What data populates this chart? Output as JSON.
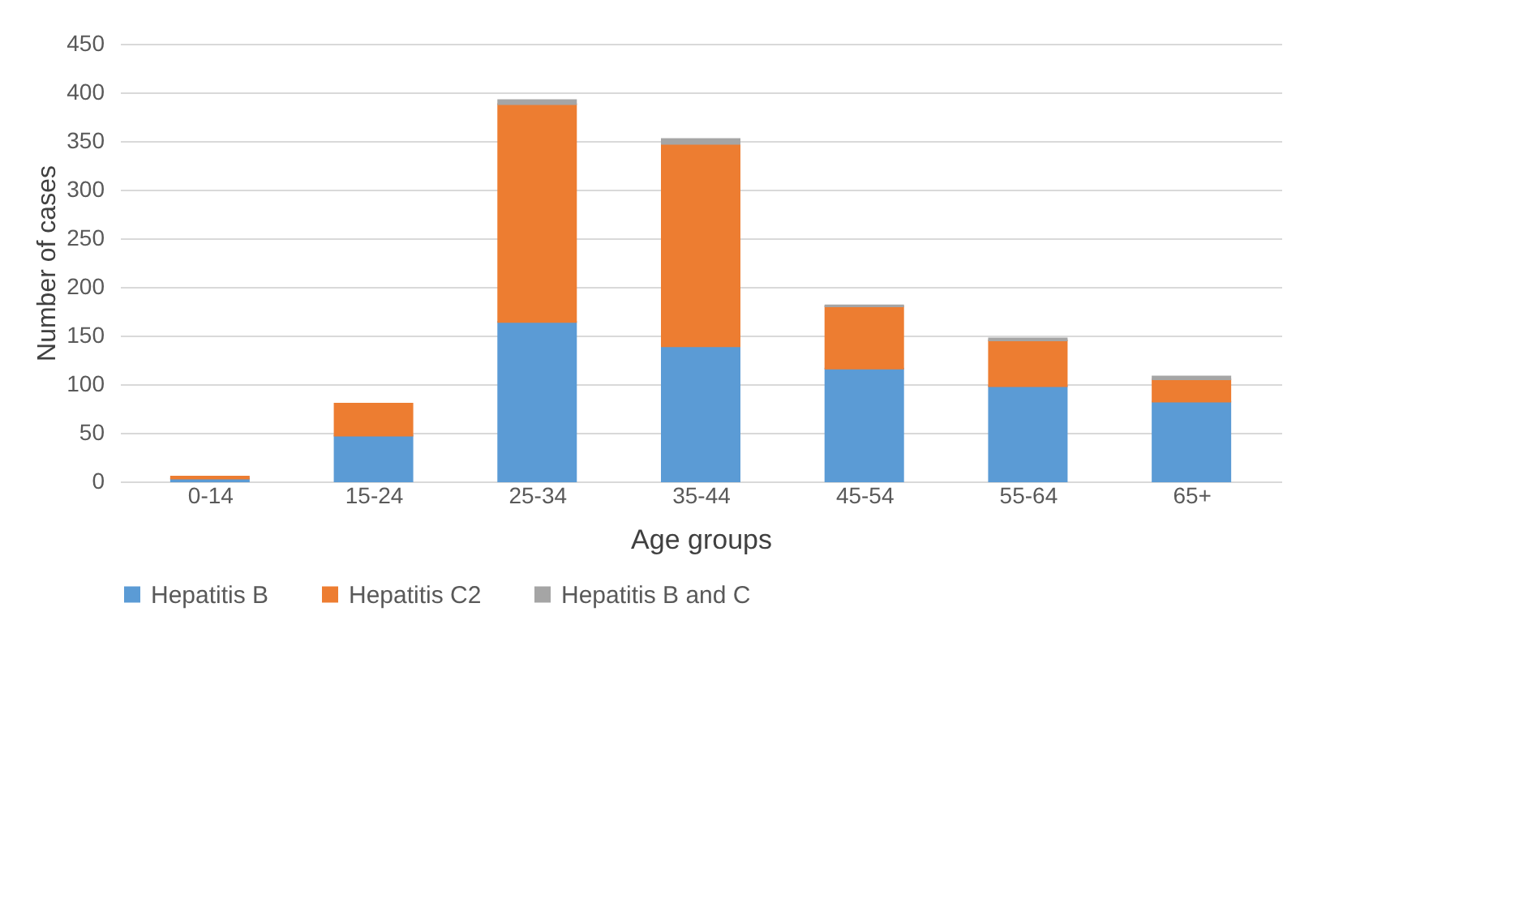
{
  "chart_data": {
    "type": "bar",
    "stacked": true,
    "xlabel": "Age groups",
    "ylabel": "Number of cases",
    "categories": [
      "0-14",
      "15-24",
      "25-34",
      "35-44",
      "45-54",
      "55-64",
      "65+"
    ],
    "series": [
      {
        "name": "Hepatitis B",
        "color": "#5b9bd5",
        "values": [
          3,
          47,
          164,
          139,
          116,
          98,
          82
        ]
      },
      {
        "name": "Hepatitis C2",
        "color": "#ed7d31",
        "values": [
          2,
          33,
          224,
          208,
          64,
          47,
          23
        ]
      },
      {
        "name": "Hepatitis B and C",
        "color": "#a5a5a5",
        "values": [
          0,
          0,
          4,
          5,
          1,
          2,
          3
        ]
      }
    ],
    "ylim": [
      0,
      450
    ],
    "yticks": [
      0,
      50,
      100,
      150,
      200,
      250,
      300,
      350,
      400,
      450
    ],
    "grid": "y",
    "legend": "bottom"
  }
}
